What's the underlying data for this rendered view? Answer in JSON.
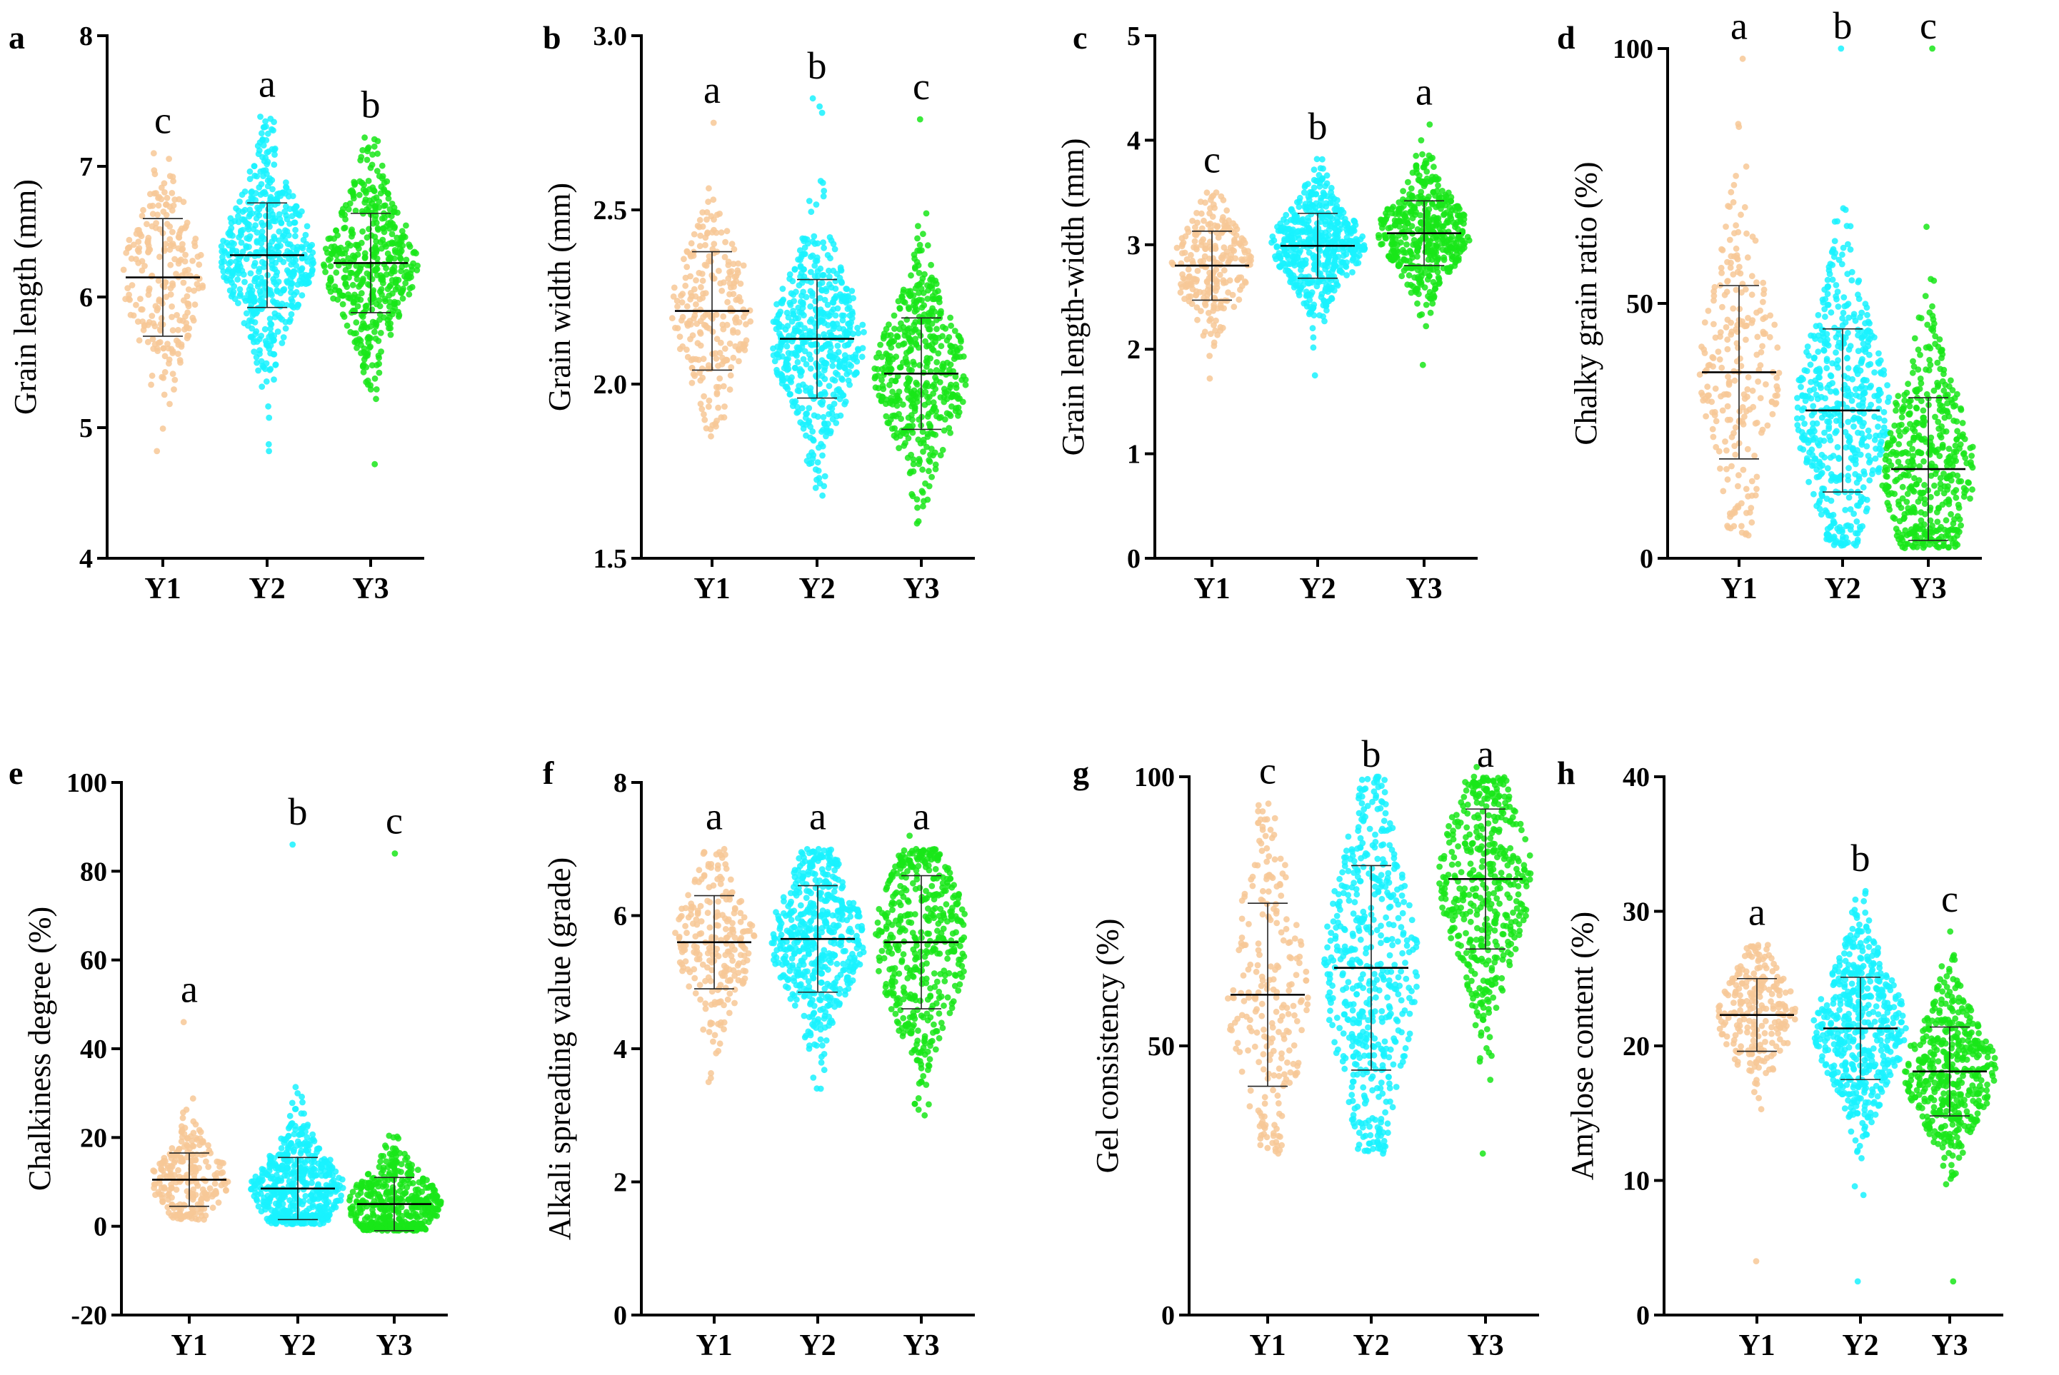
{
  "series_colors": [
    "#f7c896",
    "#19f2ff",
    "#19e619"
  ],
  "chart_data": [
    {
      "type": "scatter",
      "panel": "a",
      "ylabel": "Grain length (mm)",
      "ylim": [
        4,
        8
      ],
      "ticks": [
        4,
        5,
        6,
        7,
        8
      ],
      "categories": [
        "Y1",
        "Y2",
        "Y3"
      ],
      "series": [
        {
          "name": "Y1",
          "mean": 6.15,
          "sd": 0.45,
          "min": 4.82,
          "max": 7.1,
          "n": 240,
          "letter": "c"
        },
        {
          "name": "Y2",
          "mean": 6.32,
          "sd": 0.4,
          "min": 4.82,
          "max": 7.38,
          "n": 520,
          "letter": "a"
        },
        {
          "name": "Y3",
          "mean": 6.26,
          "sd": 0.38,
          "min": 4.72,
          "max": 7.22,
          "n": 460,
          "letter": "b"
        }
      ]
    },
    {
      "type": "scatter",
      "panel": "b",
      "ylabel": "Grain width (mm)",
      "ylim": [
        1.5,
        3.0
      ],
      "ticks": [
        "1.5",
        "2.0",
        "2.5",
        "3.0"
      ],
      "categories": [
        "Y1",
        "Y2",
        "Y3"
      ],
      "series": [
        {
          "name": "Y1",
          "mean": 2.21,
          "sd": 0.17,
          "min": 1.85,
          "max": 2.75,
          "n": 240,
          "letter": "a"
        },
        {
          "name": "Y2",
          "mean": 2.13,
          "sd": 0.17,
          "min": 1.68,
          "max": 2.82,
          "n": 520,
          "letter": "b"
        },
        {
          "name": "Y3",
          "mean": 2.03,
          "sd": 0.16,
          "min": 1.6,
          "max": 2.76,
          "n": 460,
          "letter": "c"
        }
      ]
    },
    {
      "type": "scatter",
      "panel": "c",
      "ylabel": "Grain length-width (mm)",
      "ylim": [
        0,
        5
      ],
      "ticks": [
        0,
        1,
        2,
        3,
        4,
        5
      ],
      "categories": [
        "Y1",
        "Y2",
        "Y3"
      ],
      "series": [
        {
          "name": "Y1",
          "mean": 2.8,
          "sd": 0.33,
          "min": 1.72,
          "max": 3.5,
          "n": 240,
          "letter": "c"
        },
        {
          "name": "Y2",
          "mean": 2.99,
          "sd": 0.31,
          "min": 1.75,
          "max": 3.82,
          "n": 520,
          "letter": "b"
        },
        {
          "name": "Y3",
          "mean": 3.11,
          "sd": 0.31,
          "min": 1.85,
          "max": 4.15,
          "n": 460,
          "letter": "a"
        }
      ]
    },
    {
      "type": "scatter",
      "panel": "d",
      "ylabel": "Chalky grain ratio (%)",
      "ylim": [
        0,
        100
      ],
      "ticks": [
        0,
        50,
        100
      ],
      "categories": [
        "Y1",
        "Y2",
        "Y3"
      ],
      "series": [
        {
          "name": "Y1",
          "mean": 36.5,
          "sd": 17.0,
          "min": 4.5,
          "max": 98,
          "n": 240,
          "letter": "a"
        },
        {
          "name": "Y2",
          "mean": 29.0,
          "sd": 16.0,
          "min": 2.5,
          "max": 100,
          "n": 520,
          "letter": "b"
        },
        {
          "name": "Y3",
          "mean": 17.5,
          "sd": 14.0,
          "min": 2.0,
          "max": 100,
          "n": 460,
          "letter": "c"
        }
      ]
    },
    {
      "type": "scatter",
      "panel": "e",
      "ylabel": "Chalkiness degree (%)",
      "ylim": [
        -20,
        100
      ],
      "ticks": [
        -20,
        0,
        20,
        40,
        60,
        80,
        100
      ],
      "categories": [
        "Y1",
        "Y2",
        "Y3"
      ],
      "series": [
        {
          "name": "Y1",
          "mean": 10.5,
          "sd": 6.0,
          "min": 1.5,
          "max": 46,
          "n": 240,
          "letter": "a"
        },
        {
          "name": "Y2",
          "mean": 8.5,
          "sd": 7.0,
          "min": 0.5,
          "max": 86,
          "n": 520,
          "letter": "b"
        },
        {
          "name": "Y3",
          "mean": 5.0,
          "sd": 6.0,
          "min": -1.0,
          "max": 84,
          "n": 460,
          "letter": "c"
        }
      ]
    },
    {
      "type": "scatter",
      "panel": "f",
      "ylabel": "Alkali spreading value (grade)",
      "ylim": [
        0,
        8
      ],
      "ticks": [
        0,
        2,
        4,
        6,
        8
      ],
      "categories": [
        "Y1",
        "Y2",
        "Y3"
      ],
      "series": [
        {
          "name": "Y1",
          "mean": 5.6,
          "sd": 0.7,
          "min": 3.5,
          "max": 7.0,
          "n": 240,
          "letter": "a"
        },
        {
          "name": "Y2",
          "mean": 5.65,
          "sd": 0.8,
          "min": 3.4,
          "max": 7.0,
          "n": 520,
          "letter": "a"
        },
        {
          "name": "Y3",
          "mean": 5.6,
          "sd": 1.0,
          "min": 3.0,
          "max": 7.0,
          "n": 460,
          "letter": "a"
        }
      ]
    },
    {
      "type": "scatter",
      "panel": "g",
      "ylabel": "Gel consistency (%)",
      "ylim": [
        0,
        100
      ],
      "ticks": [
        0,
        50,
        100
      ],
      "categories": [
        "Y1",
        "Y2",
        "Y3"
      ],
      "series": [
        {
          "name": "Y1",
          "mean": 59.5,
          "sd": 17.0,
          "min": 30,
          "max": 95,
          "n": 240,
          "letter": "c"
        },
        {
          "name": "Y2",
          "mean": 64.5,
          "sd": 19.0,
          "min": 30,
          "max": 100,
          "n": 520,
          "letter": "b"
        },
        {
          "name": "Y3",
          "mean": 81.0,
          "sd": 13.0,
          "min": 30,
          "max": 100,
          "n": 460,
          "letter": "a"
        }
      ]
    },
    {
      "type": "scatter",
      "panel": "h",
      "ylabel": "Amylose content (%)",
      "ylim": [
        0,
        40
      ],
      "ticks": [
        0,
        10,
        20,
        30,
        40
      ],
      "categories": [
        "Y1",
        "Y2",
        "Y3"
      ],
      "series": [
        {
          "name": "Y1",
          "mean": 22.3,
          "sd": 2.7,
          "min": 4.0,
          "max": 27.5,
          "n": 240,
          "letter": "a"
        },
        {
          "name": "Y2",
          "mean": 21.3,
          "sd": 3.8,
          "min": 2.5,
          "max": 31.5,
          "n": 520,
          "letter": "b"
        },
        {
          "name": "Y3",
          "mean": 18.1,
          "sd": 3.3,
          "min": 2.5,
          "max": 28.5,
          "n": 460,
          "letter": "c"
        }
      ]
    }
  ]
}
